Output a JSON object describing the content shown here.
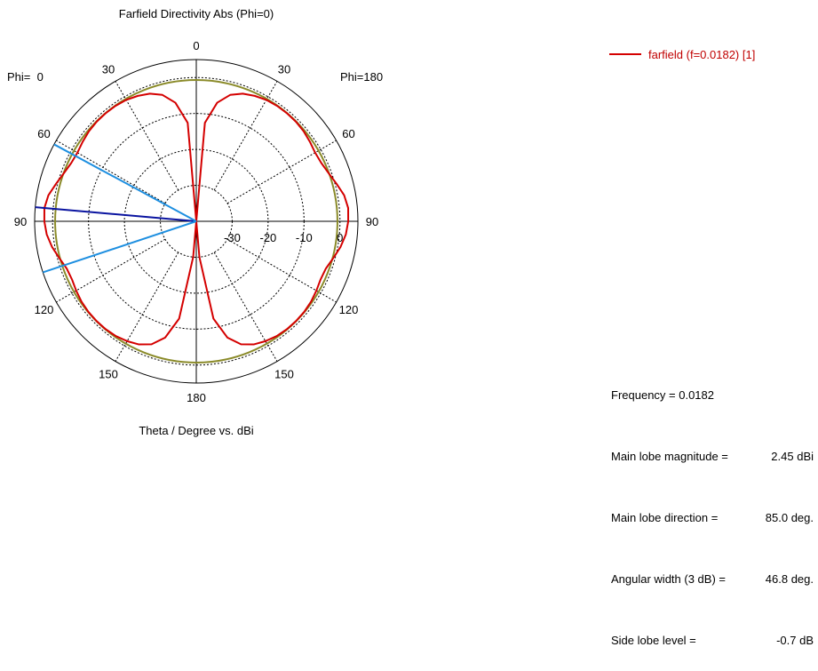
{
  "chart_data": {
    "type": "polar",
    "title": "Farfield Directivity Abs (Phi=0)",
    "xlabel": "Theta / Degree vs. dBi",
    "left_label": "Phi=  0",
    "right_label": "Phi=180",
    "radial_ticks": [
      "-30",
      "-20",
      "-10",
      "0"
    ],
    "radial_range": [
      -40,
      5
    ],
    "angle_ticks": {
      "left": [
        "30",
        "60",
        "90",
        "120",
        "150"
      ],
      "right": [
        "30",
        "60",
        "90",
        "120",
        "150"
      ],
      "top": "0",
      "bottom": "180"
    },
    "series": [
      {
        "name": "farfield (f=0.0182) [1]",
        "color": "#d40000",
        "theta_deg": [
          0,
          5,
          10,
          15,
          20,
          25,
          30,
          35,
          40,
          45,
          50,
          55,
          60,
          65,
          70,
          75,
          80,
          85,
          90,
          95,
          100,
          105,
          110,
          115,
          120,
          125,
          130,
          135,
          140,
          145,
          150,
          155,
          160,
          165,
          170,
          175,
          180
        ],
        "dbi": [
          -40,
          -12.5,
          -6.5,
          -3.6,
          -2.2,
          -1.5,
          -1.0,
          -0.8,
          -0.75,
          -0.8,
          -1.0,
          -1.4,
          -1.8,
          -1.6,
          -0.8,
          0.4,
          1.8,
          2.45,
          2.3,
          1.8,
          0.8,
          -0.5,
          -1.6,
          -1.8,
          -1.4,
          -1.0,
          -0.8,
          -0.75,
          -0.8,
          -1.0,
          -1.5,
          -2.2,
          -3.6,
          -6.5,
          -12.5,
          -30,
          -40
        ]
      }
    ],
    "reference_circle": {
      "color": "#8b8b2a",
      "dbi": -0.7
    },
    "main_lobe_direction_deg": 85.0,
    "beamwidth_edges_deg": [
      61.6,
      108.4
    ],
    "colors": {
      "main_lobe": "#0a14a0",
      "beamwidth": "#1e8fe0"
    }
  },
  "info": {
    "frequency": "Frequency = 0.0182",
    "main_lobe_magnitude_label": "Main lobe magnitude =",
    "main_lobe_magnitude_value": "2.45 dBi",
    "main_lobe_direction_label": "Main lobe direction =",
    "main_lobe_direction_value": "85.0 deg.",
    "angular_width_label": "Angular width (3 dB) =",
    "angular_width_value": "46.8 deg.",
    "side_lobe_label": "Side lobe level =",
    "side_lobe_value": "-0.7 dB"
  }
}
